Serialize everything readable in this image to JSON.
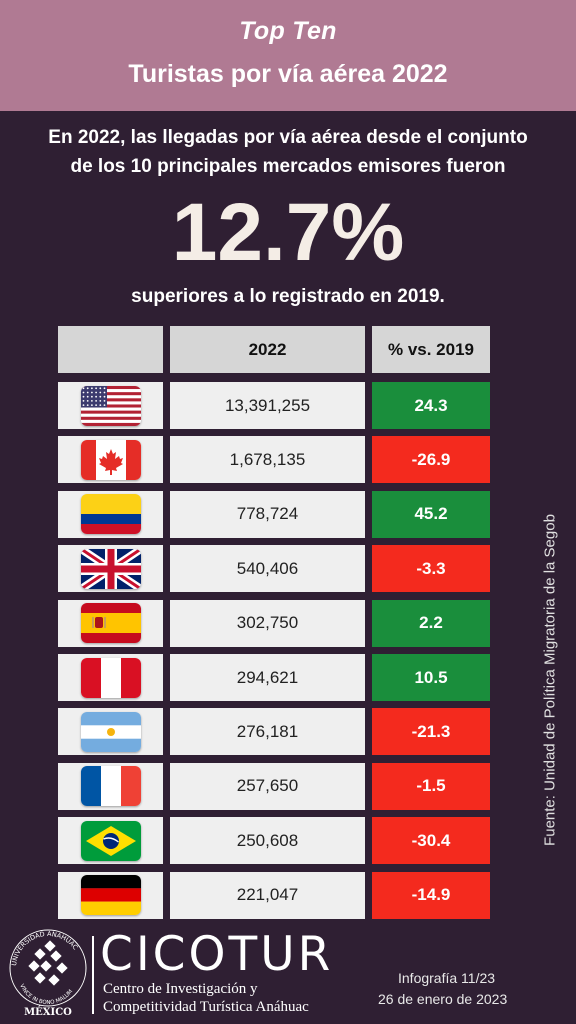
{
  "header": {
    "kicker": "Top Ten",
    "title": "Turistas por vía aérea 2022"
  },
  "intro": {
    "line1": "En 2022, las llegadas por vía aérea desde el conjunto",
    "line2": "de los 10 principales mercados emisores fueron"
  },
  "highlight": "12.7%",
  "subtitle": "superiores a lo registrado en 2019.",
  "table": {
    "col_year": "2022",
    "col_pct": "% vs. 2019",
    "rows": [
      {
        "flag": "usa-flag-icon",
        "value": "13,391,255",
        "pct": "24.3",
        "pct_value": 24.3
      },
      {
        "flag": "canada-flag-icon",
        "value": "1,678,135",
        "pct": "-26.9",
        "pct_value": -26.9
      },
      {
        "flag": "colombia-flag-icon",
        "value": "778,724",
        "pct": "45.2",
        "pct_value": 45.2
      },
      {
        "flag": "uk-flag-icon",
        "value": "540,406",
        "pct": "-3.3",
        "pct_value": -3.3
      },
      {
        "flag": "spain-flag-icon",
        "value": "302,750",
        "pct": "2.2",
        "pct_value": 2.2
      },
      {
        "flag": "peru-flag-icon",
        "value": "294,621",
        "pct": "10.5",
        "pct_value": 10.5
      },
      {
        "flag": "argentina-flag-icon",
        "value": "276,181",
        "pct": "-21.3",
        "pct_value": -21.3
      },
      {
        "flag": "france-flag-icon",
        "value": "257,650",
        "pct": "-1.5",
        "pct_value": -1.5
      },
      {
        "flag": "brazil-flag-icon",
        "value": "250,608",
        "pct": "-30.4",
        "pct_value": -30.4
      },
      {
        "flag": "germany-flag-icon",
        "value": "221,047",
        "pct": "-14.9",
        "pct_value": -14.9
      }
    ]
  },
  "colors": {
    "positive": "#1a8e3c",
    "negative": "#f42a1e",
    "header_bg": "#b07a93",
    "page_bg": "#2f1f33"
  },
  "source": "Fuente: Unidad de Política Migratoria de la Segob",
  "footer": {
    "logo_text": "UNIVERSIDAD ANÁHUAC · VINCE IN BONO MALUM",
    "logo_country": "MÉXICO",
    "brand": "CICOTUR",
    "brand_sub1": "Centro de Investigación y",
    "brand_sub2": "Competitividad Turística Anáhuac",
    "info1": "Infografía 11/23",
    "info2": "26 de enero de 2023"
  }
}
